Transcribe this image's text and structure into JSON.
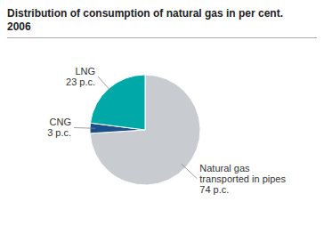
{
  "chart_data": {
    "type": "pie",
    "title": "Distribution of consumption of natural gas in per cent.",
    "subtitle": "2006",
    "categories": [
      "Natural gas\ntransported in pipes",
      "CNG",
      "LNG"
    ],
    "values": [
      74,
      3,
      23
    ],
    "value_labels": [
      "74 p.c.",
      "3 p.c.",
      "23 p.c."
    ],
    "colors": [
      "#c8ccd0",
      "#1a4f8a",
      "#00a8a8"
    ],
    "data_labels": true
  }
}
